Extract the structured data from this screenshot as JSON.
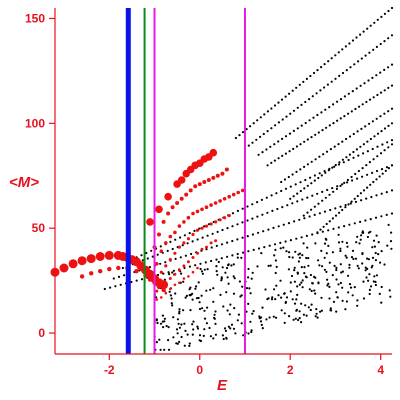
{
  "chart_data": {
    "type": "scatter",
    "xlabel": "E",
    "ylabel": "<M>",
    "xlim": [
      -3.2,
      4.25
    ],
    "ylim": [
      -10,
      155
    ],
    "x_ticks": [
      -2,
      0,
      2,
      4
    ],
    "y_ticks": [
      0,
      50,
      100,
      150
    ],
    "grid": false,
    "colors": {
      "axis": "#e8101e",
      "highlighted_points": "#ee1111",
      "background_points": "#000000",
      "vline_blue": "#0a10e8",
      "vline_green": "#0a8a1a",
      "vline_magenta": "#e81ae8"
    },
    "vlines": [
      {
        "x": -1.58,
        "color": "#0a10e8",
        "width": 5
      },
      {
        "x": -1.22,
        "color": "#0a8a1a",
        "width": 2
      },
      {
        "x": -1.0,
        "color": "#e81ae8",
        "width": 2
      },
      {
        "x": 1.0,
        "color": "#e81ae8",
        "width": 2
      }
    ],
    "highlighted_bands": [
      {
        "points": [
          [
            -3.2,
            29
          ],
          [
            -3.0,
            31
          ],
          [
            -2.8,
            33
          ],
          [
            -2.6,
            34.5
          ],
          [
            -2.4,
            35.5
          ],
          [
            -2.2,
            36.5
          ],
          [
            -2.0,
            37
          ],
          [
            -1.8,
            37
          ],
          [
            -1.7,
            36.5
          ],
          [
            -1.6,
            36
          ],
          [
            -1.5,
            35
          ],
          [
            -1.4,
            34
          ],
          [
            -1.3,
            32
          ],
          [
            -1.2,
            30
          ],
          [
            -1.1,
            28
          ],
          [
            -1.0,
            26
          ],
          [
            -0.9,
            24
          ],
          [
            -0.8,
            23
          ]
        ],
        "size": 4.5
      },
      {
        "points": [
          [
            -2.6,
            27
          ],
          [
            -2.4,
            28.5
          ],
          [
            -2.2,
            29.5
          ],
          [
            -2.0,
            30.5
          ],
          [
            -1.8,
            31
          ],
          [
            -1.6,
            31
          ],
          [
            -1.4,
            29.5
          ],
          [
            -1.2,
            27.5
          ],
          [
            -1.1,
            25.5
          ],
          [
            -1.0,
            24
          ],
          [
            -0.9,
            22
          ],
          [
            -0.8,
            20.5
          ]
        ],
        "size": 2.2
      },
      {
        "points": [
          [
            -1.1,
            53
          ],
          [
            -0.9,
            59
          ],
          [
            -0.7,
            65
          ],
          [
            -0.5,
            71
          ],
          [
            -0.4,
            73
          ],
          [
            -0.3,
            76
          ],
          [
            -0.2,
            78
          ],
          [
            -0.1,
            80
          ],
          [
            0.0,
            81
          ],
          [
            0.1,
            83
          ],
          [
            0.2,
            84
          ],
          [
            0.3,
            86
          ]
        ],
        "size": 3.8
      },
      {
        "points": [
          [
            -1.0,
            41
          ],
          [
            -0.9,
            47
          ],
          [
            -0.8,
            53
          ],
          [
            -0.7,
            57
          ],
          [
            -0.6,
            60
          ],
          [
            -0.5,
            62
          ],
          [
            -0.4,
            64
          ],
          [
            -0.3,
            66
          ],
          [
            -0.2,
            68
          ],
          [
            -0.1,
            70
          ],
          [
            0.0,
            71
          ],
          [
            0.1,
            72
          ],
          [
            0.2,
            73
          ],
          [
            0.3,
            74
          ],
          [
            0.4,
            75
          ],
          [
            0.5,
            76
          ],
          [
            0.6,
            78
          ]
        ],
        "size": 2.0
      },
      {
        "points": [
          [
            -0.95,
            33
          ],
          [
            -0.85,
            39
          ],
          [
            -0.75,
            43
          ],
          [
            -0.65,
            46
          ],
          [
            -0.55,
            48
          ],
          [
            -0.45,
            51
          ],
          [
            -0.35,
            53
          ],
          [
            -0.25,
            55
          ],
          [
            -0.15,
            57
          ],
          [
            -0.05,
            58
          ],
          [
            0.05,
            59
          ],
          [
            0.15,
            60
          ],
          [
            0.25,
            61
          ],
          [
            0.35,
            62
          ],
          [
            0.45,
            63
          ],
          [
            0.55,
            64
          ],
          [
            0.65,
            65
          ],
          [
            0.75,
            66
          ],
          [
            0.85,
            67
          ],
          [
            0.95,
            68
          ]
        ],
        "size": 1.8
      },
      {
        "points": [
          [
            -0.95,
            26
          ],
          [
            -0.85,
            29
          ],
          [
            -0.75,
            32
          ],
          [
            -0.65,
            35
          ],
          [
            -0.55,
            38
          ],
          [
            -0.45,
            41
          ],
          [
            -0.35,
            43
          ],
          [
            -0.25,
            45
          ],
          [
            -0.15,
            47
          ],
          [
            -0.05,
            49
          ],
          [
            0.05,
            50
          ],
          [
            0.15,
            51
          ],
          [
            0.25,
            52
          ],
          [
            0.35,
            53
          ],
          [
            0.45,
            54
          ],
          [
            0.55,
            55
          ],
          [
            0.65,
            56
          ]
        ],
        "size": 1.6
      },
      {
        "points": [
          [
            -0.95,
            20
          ],
          [
            -0.85,
            22
          ],
          [
            -0.75,
            24
          ],
          [
            -0.65,
            26
          ],
          [
            -0.55,
            28
          ],
          [
            -0.45,
            30
          ],
          [
            -0.35,
            32
          ],
          [
            -0.25,
            34
          ],
          [
            -0.15,
            36
          ],
          [
            -0.05,
            38
          ],
          [
            0.05,
            40
          ],
          [
            0.15,
            41
          ],
          [
            0.25,
            43
          ],
          [
            0.35,
            44
          ]
        ],
        "size": 1.5
      },
      {
        "points": [
          [
            -0.95,
            16
          ],
          [
            -0.85,
            17
          ],
          [
            -0.75,
            19
          ],
          [
            -0.65,
            21
          ],
          [
            -0.55,
            23
          ],
          [
            -0.45,
            24
          ],
          [
            -0.35,
            26
          ],
          [
            -0.25,
            27
          ],
          [
            -0.15,
            29
          ],
          [
            -0.05,
            31
          ]
        ],
        "size": 1.3
      }
    ],
    "background_bands": [
      {
        "x_start": -2.1,
        "x_end": 4.25,
        "y_start": 21,
        "y_end": 57,
        "count": 55
      },
      {
        "x_start": -1.9,
        "x_end": 4.25,
        "y_start": 26,
        "y_end": 68,
        "count": 55
      },
      {
        "x_start": -1.7,
        "x_end": 4.25,
        "y_start": 31,
        "y_end": 80,
        "count": 55
      },
      {
        "x_start": -1.5,
        "x_end": 4.25,
        "y_start": 35,
        "y_end": 92,
        "count": 55
      },
      {
        "x_start": 0.8,
        "x_end": 4.25,
        "y_start": 93,
        "y_end": 155,
        "count": 45
      },
      {
        "x_start": 1.0,
        "x_end": 4.25,
        "y_start": 88,
        "y_end": 142,
        "count": 40
      },
      {
        "x_start": 1.3,
        "x_end": 4.25,
        "y_start": 85,
        "y_end": 128,
        "count": 35
      },
      {
        "x_start": 1.5,
        "x_end": 4.25,
        "y_start": 80,
        "y_end": 118,
        "count": 35
      },
      {
        "x_start": 1.8,
        "x_end": 4.25,
        "y_start": 72,
        "y_end": 107,
        "count": 30
      },
      {
        "x_start": 2.0,
        "x_end": 4.25,
        "y_start": 64,
        "y_end": 100,
        "count": 30
      },
      {
        "x_start": 2.3,
        "x_end": 4.25,
        "y_start": 56,
        "y_end": 90,
        "count": 25
      },
      {
        "x_start": 2.6,
        "x_end": 4.25,
        "y_start": 48,
        "y_end": 80,
        "count": 25
      }
    ],
    "background_cloud": {
      "x_range": [
        -1.0,
        4.25
      ],
      "y_range": [
        -8,
        55
      ],
      "count": 420,
      "seed": 7
    }
  }
}
